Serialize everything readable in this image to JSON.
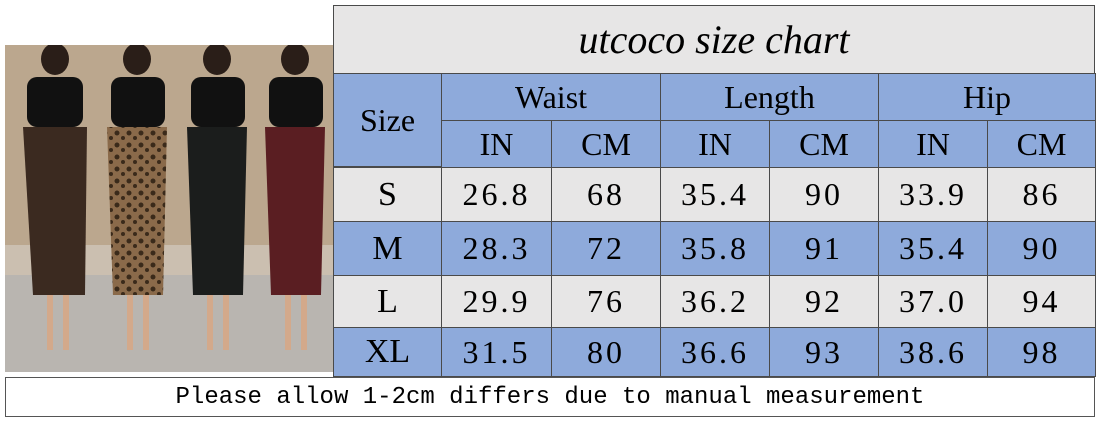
{
  "title": "utcoco size chart",
  "table": {
    "size_header": "Size",
    "groups": [
      "Waist",
      "Length",
      "Hip"
    ],
    "units": [
      "IN",
      "CM",
      "IN",
      "CM",
      "IN",
      "CM"
    ],
    "rows": [
      [
        "S",
        "26.8",
        "68",
        "35.4",
        "90",
        "33.9",
        "86"
      ],
      [
        "M",
        "28.3",
        "72",
        "35.8",
        "91",
        "35.4",
        "90"
      ],
      [
        "L",
        "29.9",
        "76",
        "36.2",
        "92",
        "37.0",
        "94"
      ],
      [
        "XL",
        "31.5",
        "80",
        "36.6",
        "93",
        "38.6",
        "98"
      ]
    ]
  },
  "footer": "Please allow 1-2cm differs due to manual measurement"
}
